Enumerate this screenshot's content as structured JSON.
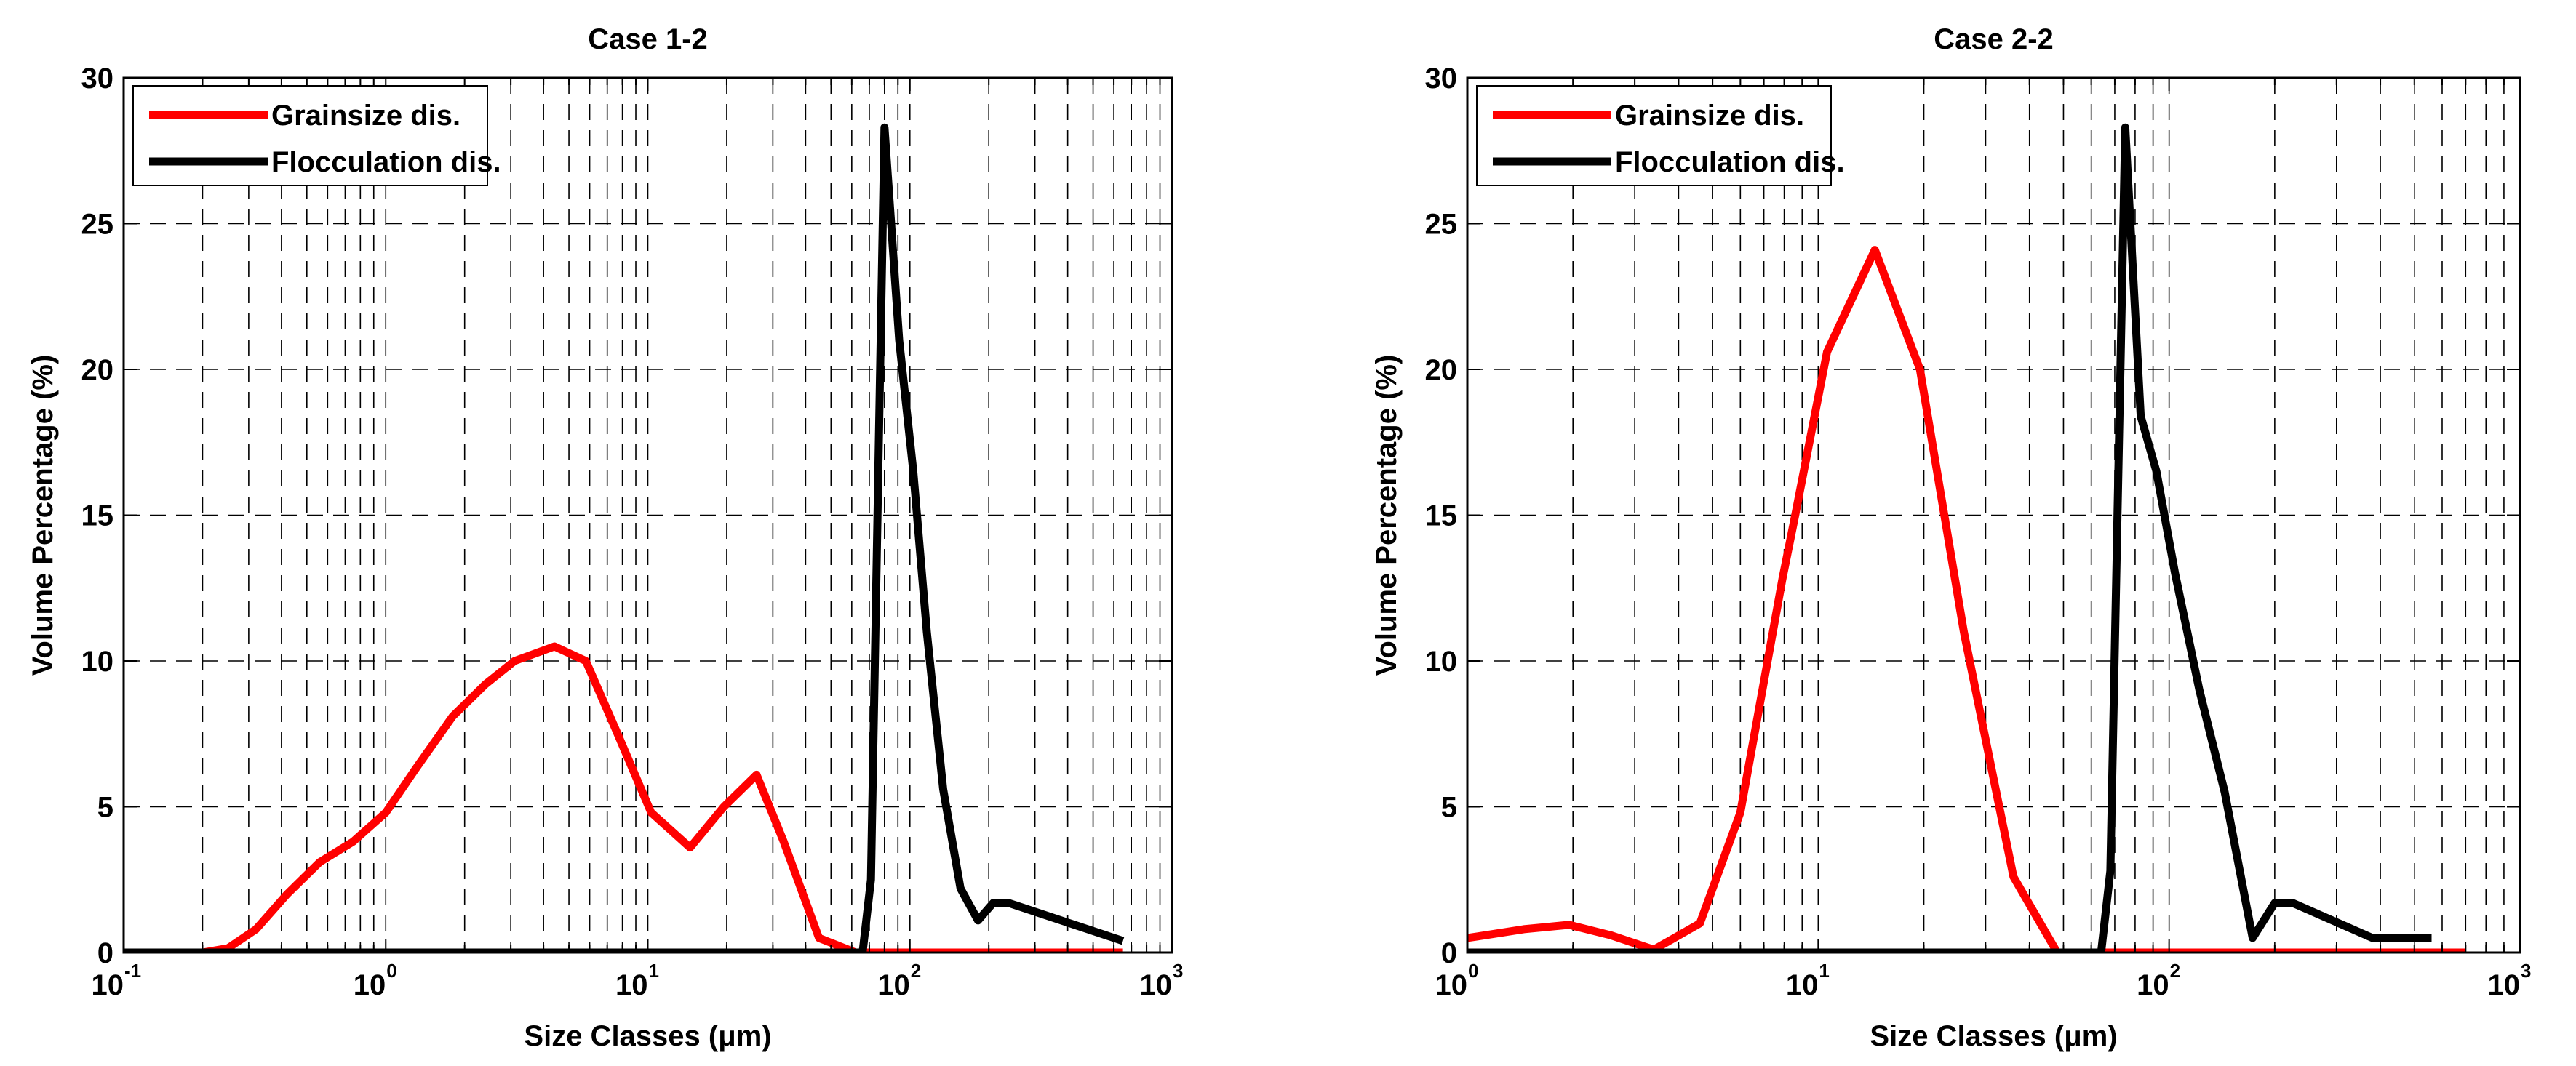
{
  "chart_data": [
    {
      "type": "line",
      "title": "Case 1-2",
      "xlabel": "Size Classes (μm)",
      "ylabel": "Volume Percentage (%)",
      "xscale": "log",
      "xlim": [
        0.1,
        1000
      ],
      "ylim": [
        0,
        30
      ],
      "xticks": [
        {
          "base": "10",
          "exp": "-1",
          "value": 0.1
        },
        {
          "base": "10",
          "exp": "0",
          "value": 1
        },
        {
          "base": "10",
          "exp": "1",
          "value": 10
        },
        {
          "base": "10",
          "exp": "2",
          "value": 100
        },
        {
          "base": "10",
          "exp": "3",
          "value": 1000
        }
      ],
      "yticks": [
        "0",
        "5",
        "10",
        "15",
        "20",
        "25",
        "30"
      ],
      "grid": true,
      "legend_position": "top-left",
      "series": [
        {
          "name": "Grainsize dis.",
          "color": "#ff0000",
          "x": [
            0.1,
            0.2,
            0.25,
            0.32,
            0.42,
            0.56,
            0.75,
            1.0,
            1.3,
            1.8,
            2.4,
            3.1,
            4.4,
            5.8,
            7.5,
            10.3,
            14.5,
            19.5,
            26,
            33,
            45,
            62,
            85,
            120,
            170,
            250,
            350,
            500,
            650
          ],
          "y": [
            0,
            0,
            0.15,
            0.8,
            2.0,
            3.1,
            3.8,
            4.8,
            6.3,
            8.1,
            9.2,
            10.0,
            10.5,
            10.0,
            7.7,
            4.8,
            3.6,
            5.0,
            6.1,
            3.8,
            0.5,
            0,
            0,
            0,
            0,
            0,
            0,
            0,
            0
          ]
        },
        {
          "name": "Flocculation dis.",
          "color": "#000000",
          "x": [
            0.1,
            1,
            10,
            30,
            55,
            66,
            71,
            80,
            91,
            103,
            116,
            134,
            156,
            182,
            208,
            238,
            650
          ],
          "y": [
            0,
            0,
            0,
            0,
            0,
            0,
            2.5,
            28.3,
            21.0,
            16.5,
            11.0,
            5.6,
            2.2,
            1.1,
            1.7,
            1.7,
            0.4
          ]
        }
      ]
    },
    {
      "type": "line",
      "title": "Case 2-2",
      "xlabel": "Size Classes (μm)",
      "ylabel": "Volume Percentage (%)",
      "xscale": "log",
      "xlim": [
        1,
        1000
      ],
      "ylim": [
        0,
        30
      ],
      "xticks": [
        {
          "base": "10",
          "exp": "0",
          "value": 1
        },
        {
          "base": "10",
          "exp": "1",
          "value": 10
        },
        {
          "base": "10",
          "exp": "2",
          "value": 100
        },
        {
          "base": "10",
          "exp": "3",
          "value": 1000
        }
      ],
      "yticks": [
        "0",
        "5",
        "10",
        "15",
        "20",
        "25",
        "30"
      ],
      "grid": true,
      "legend_position": "top-left",
      "series": [
        {
          "name": "Grainsize dis.",
          "color": "#ff0000",
          "x": [
            1.0,
            1.45,
            1.95,
            2.55,
            3.4,
            4.6,
            6.0,
            7.9,
            8.6,
            10.6,
            14.5,
            19.5,
            26,
            36,
            48,
            70,
            100,
            200,
            400,
            700
          ],
          "y": [
            0.5,
            0.8,
            0.95,
            0.6,
            0.1,
            1.0,
            4.8,
            12.8,
            15.0,
            20.6,
            24.1,
            20.0,
            11.0,
            2.6,
            0,
            0,
            0,
            0,
            0,
            0
          ]
        },
        {
          "name": "Flocculation dis.",
          "color": "#000000",
          "x": [
            1.0,
            10,
            40,
            64,
            68,
            75,
            83,
            92,
            104,
            122,
            144,
            173,
            200,
            225,
            380,
            560
          ],
          "y": [
            0,
            0,
            0,
            0,
            2.8,
            28.3,
            18.4,
            16.5,
            13.0,
            9.0,
            5.5,
            0.5,
            1.7,
            1.7,
            0.5,
            0.5
          ]
        }
      ]
    }
  ]
}
